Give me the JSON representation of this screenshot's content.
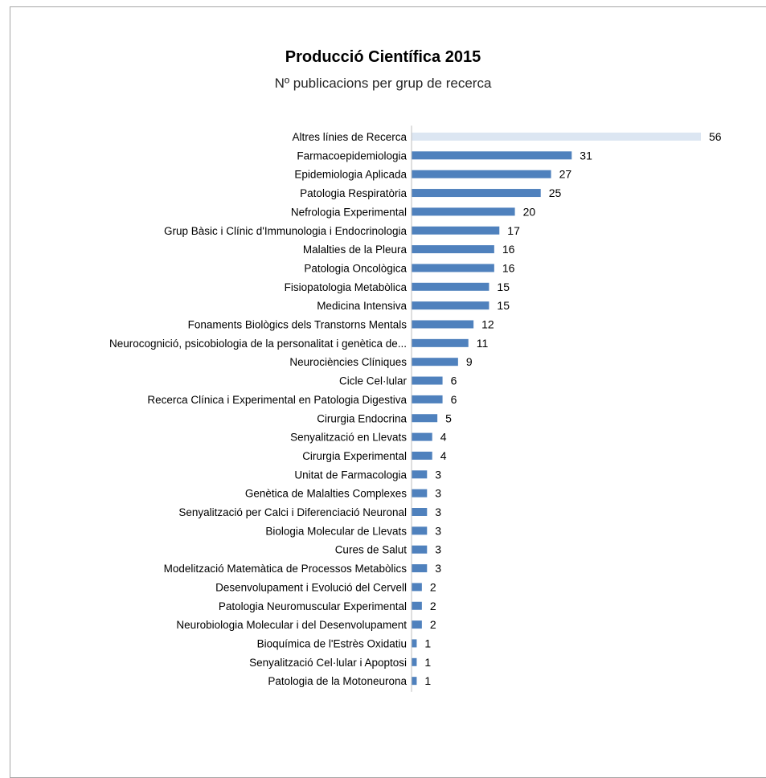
{
  "chart_data": {
    "type": "bar",
    "orientation": "horizontal",
    "title": "Producció Científica 2015",
    "subtitle": "Nº publicacions per grup de recerca",
    "categories": [
      "Altres línies de Recerca",
      "Farmacoepidemiologia",
      "Epidemiologia Aplicada",
      "Patologia Respiratòria",
      "Nefrologia Experimental",
      "Grup Bàsic i Clínic d'Immunologia i Endocrinologia",
      "Malalties de la Pleura",
      "Patologia Oncològica",
      "Fisiopatologia Metabòlica",
      "Medicina Intensiva",
      "Fonaments Biològics dels Transtorns Mentals",
      "Neurocognició, psicobiologia de la personalitat i genètica de...",
      "Neurociències Clíniques",
      "Cicle Cel·lular",
      "Recerca Clínica i Experimental en Patologia Digestiva",
      "Cirurgia Endocrina",
      "Senyalització en Llevats",
      "Cirurgia Experimental",
      "Unitat de Farmacologia",
      "Genètica de Malalties Complexes",
      "Senyalització per Calci i Diferenciació Neuronal",
      "Biologia Molecular de Llevats",
      "Cures de Salut",
      "Modelització Matemàtica de Processos Metabòlics",
      "Desenvolupament i Evolució del Cervell",
      "Patologia Neuromuscular Experimental",
      "Neurobiologia Molecular i del Desenvolupament",
      "Bioquímica de l'Estrès Oxidatiu",
      "Senyalització Cel·lular i Apoptosi",
      "Patologia de la Motoneurona"
    ],
    "values": [
      56,
      31,
      27,
      25,
      20,
      17,
      16,
      16,
      15,
      15,
      12,
      11,
      9,
      6,
      6,
      5,
      4,
      4,
      3,
      3,
      3,
      3,
      3,
      3,
      2,
      2,
      2,
      1,
      1,
      1
    ],
    "data_labels": [
      "56",
      "31",
      "27",
      "25",
      "20",
      "17",
      "16",
      "16",
      "15",
      "15",
      "12",
      "11",
      "9",
      "6",
      "6",
      "5",
      "4",
      "4",
      "3",
      "3",
      "3",
      "3",
      "3",
      "3",
      "2",
      "2",
      "2",
      "1",
      "1",
      "1"
    ],
    "xlim": [
      0,
      56
    ],
    "grid": false,
    "legend": "none",
    "colors": {
      "bar": "#4f81bd",
      "highlight_bar": "#dce6f2",
      "axis": "#bfbfbf"
    },
    "highlight_index": 0
  }
}
